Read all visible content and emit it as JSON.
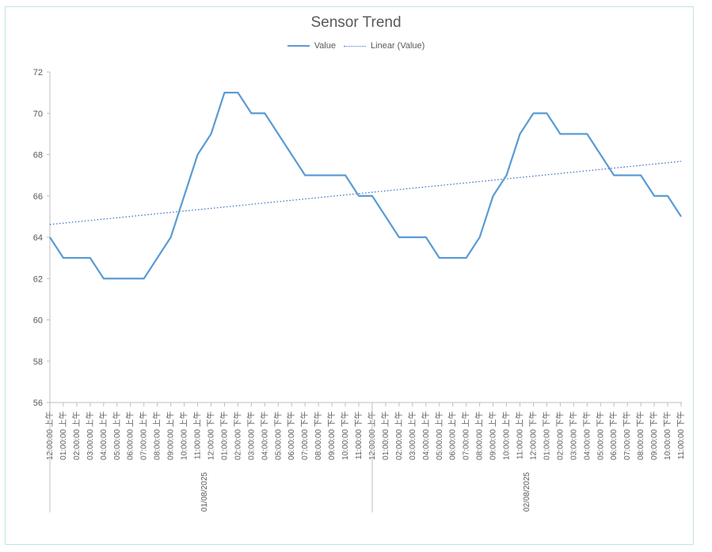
{
  "chart_data": {
    "type": "line",
    "title": "Sensor Trend",
    "xlabel": "",
    "ylabel": "",
    "ylim": [
      56,
      72
    ],
    "yticks": [
      56,
      58,
      60,
      62,
      64,
      66,
      68,
      70,
      72
    ],
    "grid": false,
    "legend_position": "top",
    "x_time_labels": [
      "12:00:00 上午",
      "01:00:00 上午",
      "02:00:00 上午",
      "03:00:00 上午",
      "04:00:00 上午",
      "05:00:00 上午",
      "06:00:00 上午",
      "07:00:00 上午",
      "08:00:00 上午",
      "09:00:00 上午",
      "10:00:00 上午",
      "11:00:00 上午",
      "12:00:00 下午",
      "01:00:00 下午",
      "02:00:00 下午",
      "03:00:00 下午",
      "04:00:00 下午",
      "05:00:00 下午",
      "06:00:00 下午",
      "07:00:00 下午",
      "08:00:00 下午",
      "09:00:00 下午",
      "10:00:00 下午",
      "11:00:00 下午",
      "12:00:00 上午",
      "01:00:00 上午",
      "02:00:00 上午",
      "03:00:00 上午",
      "04:00:00 上午",
      "05:00:00 上午",
      "06:00:00 上午",
      "07:00:00 上午",
      "08:00:00 上午",
      "09:00:00 上午",
      "10:00:00 上午",
      "11:00:00 上午",
      "12:00:00 下午",
      "01:00:00 下午",
      "02:00:00 下午",
      "03:00:00 下午",
      "04:00:00 下午",
      "05:00:00 下午",
      "06:00:00 下午",
      "07:00:00 下午",
      "08:00:00 下午",
      "09:00:00 下午",
      "10:00:00 下午",
      "11:00:00 下午"
    ],
    "x_date_groups": [
      {
        "label": "01/08/2025",
        "count": 24
      },
      {
        "label": "02/08/2025",
        "count": 24
      }
    ],
    "series": [
      {
        "name": "Value",
        "color": "#5b9bd5",
        "values": [
          64,
          63,
          63,
          63,
          62,
          62,
          62,
          62,
          63,
          64,
          66,
          68,
          69,
          71,
          71,
          70,
          70,
          69,
          68,
          67,
          67,
          67,
          67,
          66,
          66,
          65,
          64,
          64,
          64,
          63,
          63,
          63,
          64,
          66,
          67,
          69,
          70,
          70,
          69,
          69,
          69,
          68,
          67,
          67,
          67,
          66,
          66,
          65
        ]
      }
    ],
    "trendline": {
      "name": "Linear (Value)",
      "type": "linear",
      "of_series": "Value",
      "color": "#4472c4",
      "style": "dotted"
    }
  }
}
